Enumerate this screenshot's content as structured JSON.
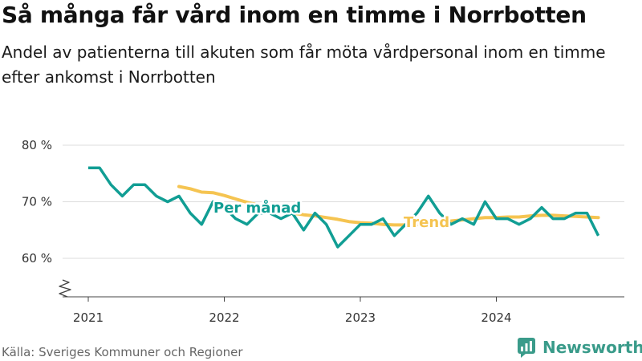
{
  "title": "Så många får vård inom en timme i Norrbotten",
  "subtitle": "Andel av patienterna till akuten som får möta vårdpersonal inom en timme efter ankomst i Norrbotten",
  "source": "Källa: Sveriges Kommuner och Regioner",
  "brand": "Newsworthy",
  "colors": {
    "monthly": "#119e94",
    "trend": "#f5c451",
    "brand": "#3a9b8a",
    "grid": "#dddddd"
  },
  "chart_data": {
    "type": "line",
    "ylim": [
      60,
      80
    ],
    "yticks": [
      60,
      70,
      80
    ],
    "ytick_labels": [
      "60 %",
      "70 %",
      "80 %"
    ],
    "xticks": [
      2021,
      2022,
      2023,
      2024
    ],
    "xtick_labels": [
      "2021",
      "2022",
      "2023",
      "2024"
    ],
    "grid": true,
    "axis_break": true,
    "series": [
      {
        "name": "Per månad",
        "x": [
          "2021-01",
          "2021-02",
          "2021-03",
          "2021-04",
          "2021-05",
          "2021-06",
          "2021-07",
          "2021-08",
          "2021-09",
          "2021-10",
          "2021-11",
          "2021-12",
          "2022-01",
          "2022-02",
          "2022-03",
          "2022-04",
          "2022-05",
          "2022-06",
          "2022-07",
          "2022-08",
          "2022-09",
          "2022-10",
          "2022-11",
          "2022-12",
          "2023-01",
          "2023-02",
          "2023-03",
          "2023-04",
          "2023-05",
          "2023-06",
          "2023-07",
          "2023-08",
          "2023-09",
          "2023-10",
          "2023-11",
          "2023-12",
          "2024-01",
          "2024-02",
          "2024-03",
          "2024-04",
          "2024-05",
          "2024-06",
          "2024-07",
          "2024-08",
          "2024-09",
          "2024-10"
        ],
        "values": [
          76,
          76,
          73,
          71,
          73,
          73,
          71,
          70,
          71,
          68,
          66,
          70,
          69,
          67,
          66,
          68,
          68,
          67,
          68,
          65,
          68,
          66,
          62,
          64,
          66,
          66,
          67,
          64,
          66,
          68,
          71,
          68,
          66,
          67,
          66,
          70,
          67,
          67,
          66,
          67,
          69,
          67,
          67,
          68,
          68,
          64
        ]
      },
      {
        "name": "Trend",
        "x": [
          "2021-09",
          "2021-10",
          "2021-11",
          "2021-12",
          "2022-01",
          "2022-02",
          "2022-03",
          "2022-04",
          "2022-05",
          "2022-06",
          "2022-07",
          "2022-08",
          "2022-09",
          "2022-10",
          "2022-11",
          "2022-12",
          "2023-01",
          "2023-02",
          "2023-03",
          "2023-04",
          "2023-05",
          "2023-06",
          "2023-07",
          "2023-08",
          "2023-09",
          "2023-10",
          "2023-11",
          "2023-12",
          "2024-01",
          "2024-02",
          "2024-03",
          "2024-04",
          "2024-05",
          "2024-06",
          "2024-07",
          "2024-08",
          "2024-09",
          "2024-10"
        ],
        "values": [
          72.7,
          72.3,
          71.7,
          71.6,
          71.1,
          70.5,
          69.9,
          69.4,
          69.0,
          68.5,
          68.0,
          67.7,
          67.5,
          67.2,
          66.9,
          66.5,
          66.3,
          66.2,
          66.0,
          65.9,
          65.9,
          66.0,
          66.1,
          66.4,
          66.6,
          66.8,
          67.0,
          67.2,
          67.2,
          67.3,
          67.3,
          67.5,
          67.6,
          67.6,
          67.5,
          67.4,
          67.3,
          67.2
        ]
      }
    ]
  }
}
